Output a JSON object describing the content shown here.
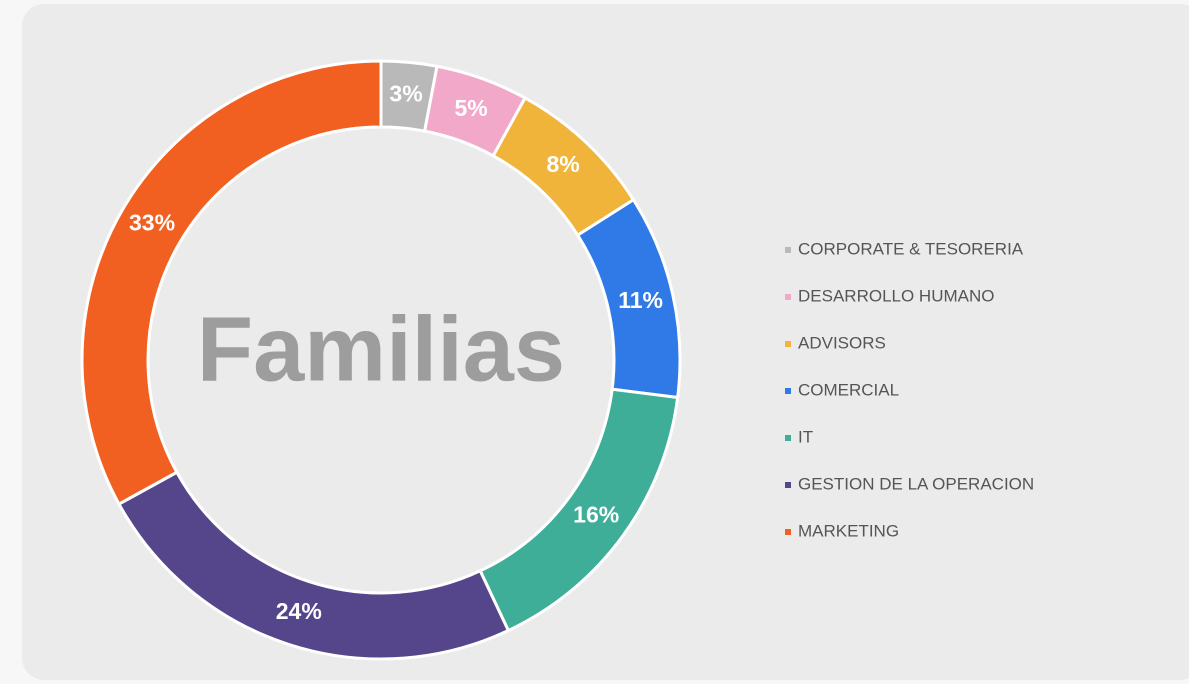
{
  "chart_data": {
    "type": "pie",
    "title": "Familias",
    "categories": [
      "CORPORATE & TESORERIA",
      "DESARROLLO HUMANO",
      "ADVISORS",
      "COMERCIAL",
      "IT",
      "GESTION DE LA OPERACION",
      "MARKETING"
    ],
    "values": [
      3,
      5,
      8,
      11,
      16,
      24,
      33
    ],
    "value_labels": [
      "3%",
      "5%",
      "8%",
      "11%",
      "16%",
      "24%",
      "33%"
    ],
    "colors": [
      "#b9b9b9",
      "#f2a9c9",
      "#f1b43b",
      "#2f7ae6",
      "#3fae98",
      "#55468b",
      "#f26021"
    ],
    "donut": true,
    "legend": "right"
  }
}
